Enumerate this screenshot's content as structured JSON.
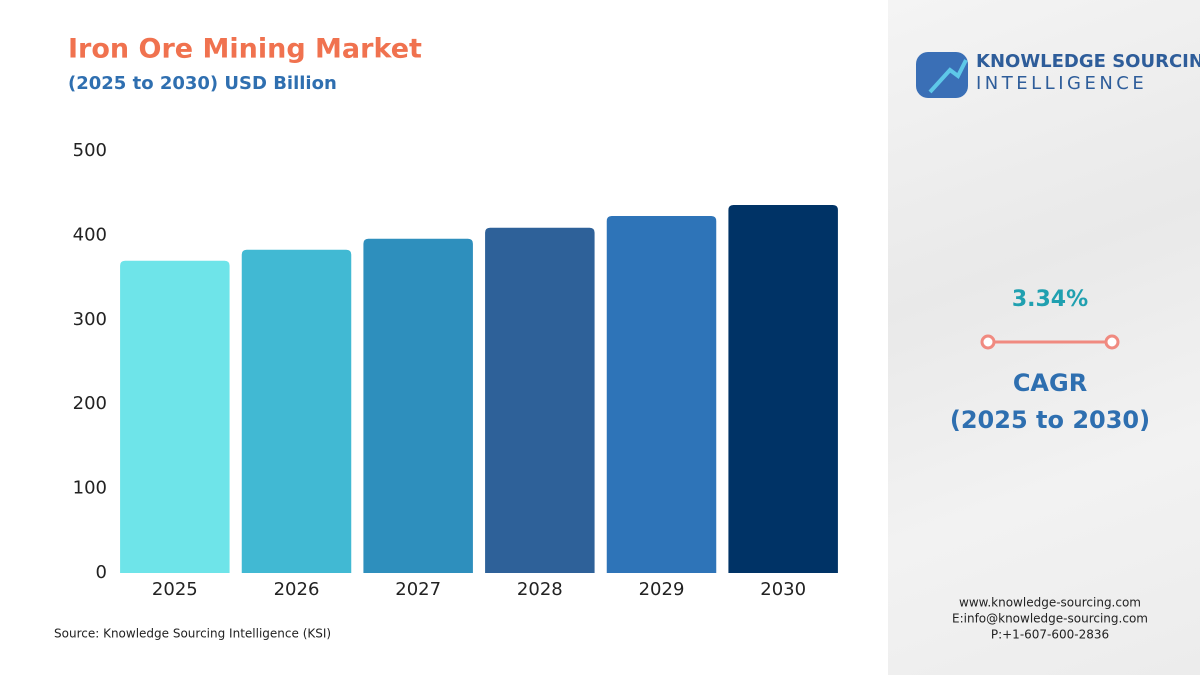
{
  "chart_data": {
    "type": "bar",
    "title": "Iron Ore Mining Market",
    "subtitle": "(2025 to 2030) USD Billion",
    "categories": [
      "2025",
      "2026",
      "2027",
      "2028",
      "2029",
      "2030"
    ],
    "values": [
      370,
      383,
      396,
      409,
      423,
      436
    ],
    "colors": [
      "#6ee4e9",
      "#41b9d3",
      "#2e8fbd",
      "#2e6199",
      "#2e74b8",
      "#003366"
    ],
    "ylim": [
      0,
      500
    ],
    "yticks": [
      0,
      100,
      200,
      300,
      400,
      500
    ],
    "grid": false,
    "source": "Source: Knowledge Sourcing Intelligence (KSI)"
  },
  "sidebar": {
    "brand_line1": "KNOWLEDGE SOURCING",
    "brand_line2": "INTELLIGENCE",
    "cagr_value": "3.34%",
    "cagr_label": "CAGR",
    "cagr_period": "(2025 to 2030)",
    "website": "www.knowledge-sourcing.com",
    "email": "E:info@knowledge-sourcing.com",
    "phone": "P:+1-607-600-2836"
  }
}
